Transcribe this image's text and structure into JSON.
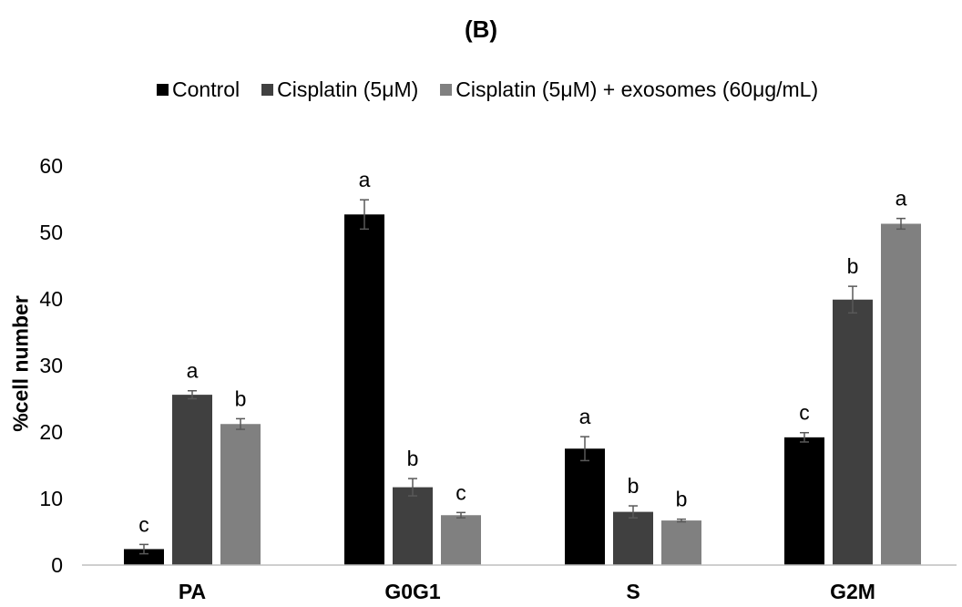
{
  "chart_data": {
    "type": "bar",
    "title": "(B)",
    "xlabel": "",
    "ylabel": "%cell number",
    "categories": [
      "PA",
      "G0G1",
      "S",
      "G2M"
    ],
    "ylim": [
      0,
      60
    ],
    "yticks": [
      0,
      10,
      20,
      30,
      40,
      50,
      60
    ],
    "grid": false,
    "legend_position": "top",
    "series": [
      {
        "name": "Control",
        "color": "#000000",
        "values": [
          2.4,
          52.7,
          17.5,
          19.2
        ],
        "errors": [
          0.7,
          2.2,
          1.8,
          0.7
        ],
        "labels": [
          "c",
          "a",
          "a",
          "c"
        ]
      },
      {
        "name": "Cisplatin (5μM)",
        "color": "#404040",
        "values": [
          25.6,
          11.7,
          8.0,
          39.9
        ],
        "errors": [
          0.6,
          1.3,
          0.9,
          2.0
        ],
        "labels": [
          "a",
          "b",
          "b",
          "b"
        ]
      },
      {
        "name": "Cisplatin (5μM) + exosomes (60μg/mL)",
        "color": "#808080",
        "values": [
          21.2,
          7.5,
          6.7,
          51.3
        ],
        "errors": [
          0.8,
          0.4,
          0.2,
          0.8
        ],
        "labels": [
          "b",
          "c",
          "b",
          "a"
        ]
      }
    ]
  }
}
